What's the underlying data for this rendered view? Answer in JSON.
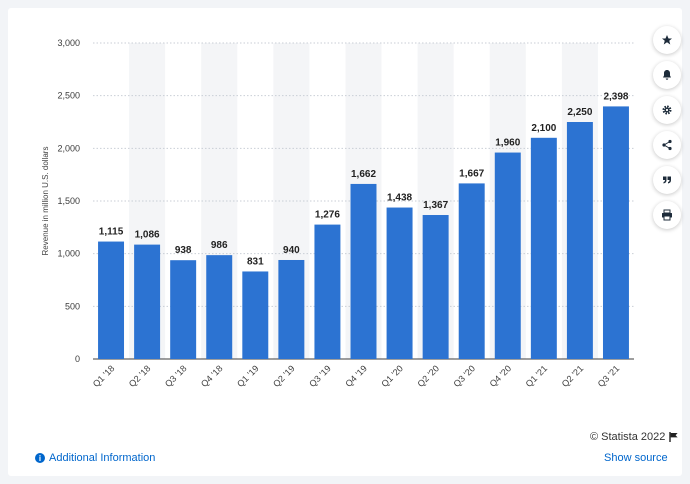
{
  "chart_data": {
    "type": "bar",
    "categories": [
      "Q1 '18",
      "Q2 '18",
      "Q3 '18",
      "Q4 '18",
      "Q1 '19",
      "Q2 '19",
      "Q3 '19",
      "Q4 '19",
      "Q1 '20",
      "Q2 '20",
      "Q3 '20",
      "Q4 '20",
      "Q1 '21",
      "Q2 '21",
      "Q3 '21"
    ],
    "values": [
      1115,
      1086,
      938,
      986,
      831,
      940,
      1276,
      1662,
      1438,
      1367,
      1667,
      1960,
      2100,
      2250,
      2398
    ],
    "value_labels": [
      "1,115",
      "1,086",
      "938",
      "986",
      "831",
      "940",
      "1,276",
      "1,662",
      "1,438",
      "1,367",
      "1,667",
      "1,960",
      "2,100",
      "2,250",
      "2,398"
    ],
    "ylabel": "Revenue in million U.S. dollars",
    "xlabel": "",
    "ylim": [
      0,
      3000
    ],
    "yticks": [
      0,
      500,
      1000,
      1500,
      2000,
      2500,
      3000
    ],
    "ytick_labels": [
      "0",
      "500",
      "1,000",
      "1,500",
      "2,000",
      "2,500",
      "3,000"
    ],
    "grid": true,
    "bar_color": "#2c73d2"
  },
  "toolbar": {
    "icons": [
      "star-icon",
      "bell-icon",
      "gear-icon",
      "share-icon",
      "quote-icon",
      "print-icon"
    ]
  },
  "footer": {
    "copyright": "© Statista 2022",
    "additional_info": "Additional Information",
    "show_source": "Show source"
  },
  "colors": {
    "link": "#0066cc",
    "bar": "#2c73d2",
    "band": "#f4f5f7"
  }
}
